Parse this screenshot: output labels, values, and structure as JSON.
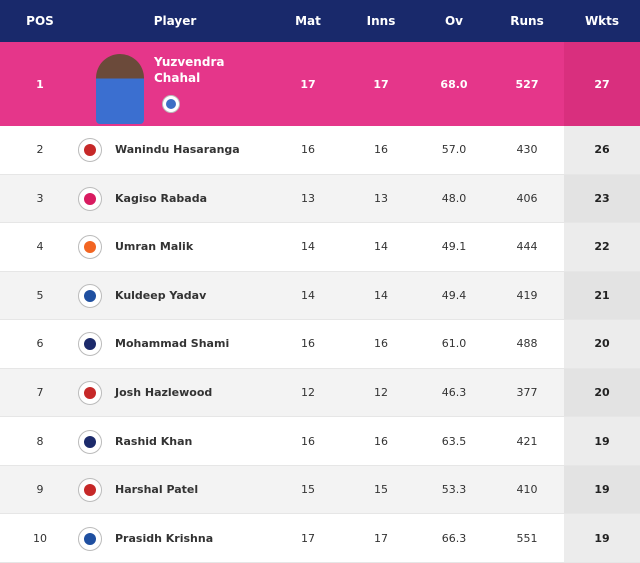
{
  "table": {
    "header": [
      "POS",
      "Player",
      "Mat",
      "Inns",
      "Ov",
      "Runs",
      "Wkts"
    ],
    "rows": [
      [
        "1",
        "Yuzvendra Chahal",
        "17",
        "17",
        "68.0",
        "527",
        "27"
      ],
      [
        "2",
        "Wanindu Hasaranga",
        "16",
        "16",
        "57.0",
        "430",
        "26"
      ],
      [
        "3",
        "Kagiso Rabada",
        "13",
        "13",
        "48.0",
        "406",
        "23"
      ],
      [
        "4",
        "Umran Malik",
        "14",
        "14",
        "49.1",
        "444",
        "22"
      ],
      [
        "5",
        "Kuldeep Yadav",
        "14",
        "14",
        "49.4",
        "419",
        "21"
      ],
      [
        "6",
        "Mohammad Shami",
        "16",
        "16",
        "61.0",
        "488",
        "20"
      ],
      [
        "7",
        "Josh Hazlewood",
        "12",
        "12",
        "46.3",
        "377",
        "20"
      ],
      [
        "8",
        "Rashid Khan",
        "16",
        "16",
        "63.5",
        "421",
        "19"
      ],
      [
        "9",
        "Harshal Patel",
        "15",
        "15",
        "53.3",
        "410",
        "19"
      ],
      [
        "10",
        "Prasidh Krishna",
        "17",
        "17",
        "66.3",
        "551",
        "19"
      ]
    ]
  }
}
